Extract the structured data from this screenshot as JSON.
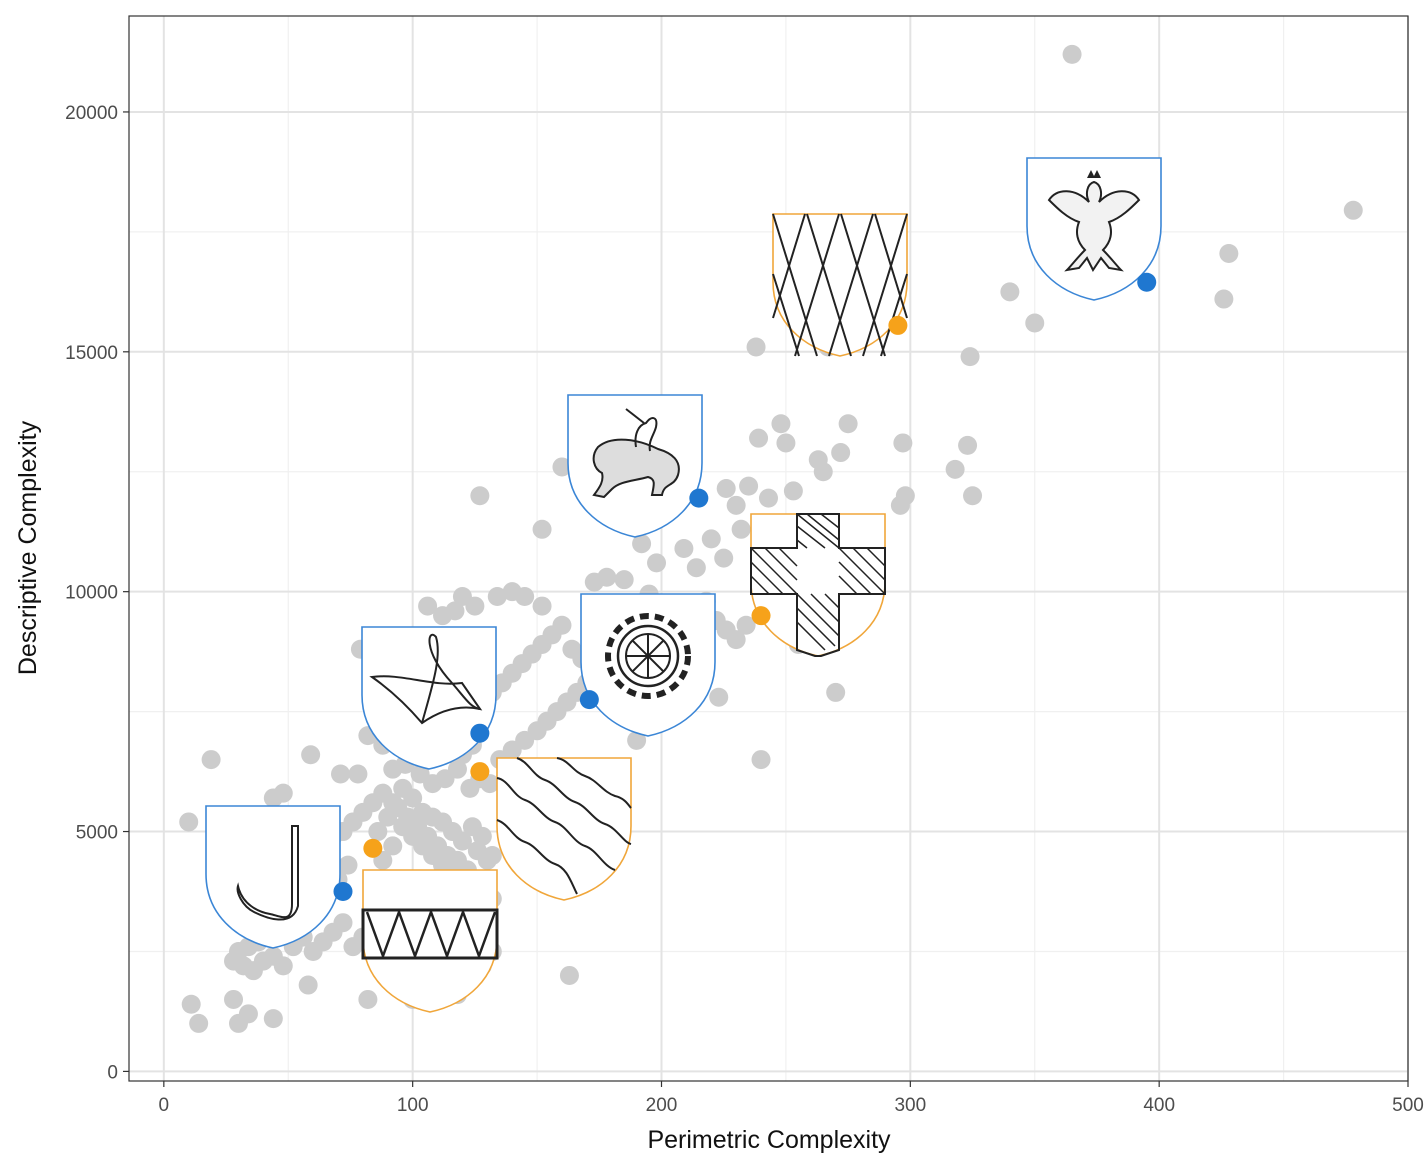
{
  "chart_data": {
    "type": "scatter",
    "xlabel": "Perimetric Complexity",
    "ylabel": "Descriptive Complexity",
    "xlim": [
      -14,
      500
    ],
    "ylim": [
      -200,
      22000
    ],
    "x_ticks": [
      "0",
      "100",
      "200",
      "300",
      "400",
      "500"
    ],
    "y_ticks": [
      "0",
      "5000",
      "10000",
      "15000",
      "20000"
    ],
    "grid": true,
    "background_points_color": "#cccccc",
    "background_points": [
      [
        365,
        21200
      ],
      [
        478,
        17950
      ],
      [
        428,
        17050
      ],
      [
        426,
        16100
      ],
      [
        340,
        16250
      ],
      [
        350,
        15600
      ],
      [
        324,
        14900
      ],
      [
        238,
        15100
      ],
      [
        267,
        15100
      ],
      [
        275,
        13500
      ],
      [
        297,
        13100
      ],
      [
        323,
        13050
      ],
      [
        318,
        12550
      ],
      [
        325,
        12000
      ],
      [
        298,
        12000
      ],
      [
        296,
        11800
      ],
      [
        248,
        13500
      ],
      [
        239,
        13200
      ],
      [
        250,
        13100
      ],
      [
        263,
        12750
      ],
      [
        272,
        12900
      ],
      [
        265,
        12500
      ],
      [
        253,
        12100
      ],
      [
        243,
        11950
      ],
      [
        235,
        12200
      ],
      [
        230,
        11800
      ],
      [
        226,
        12150
      ],
      [
        232,
        11300
      ],
      [
        220,
        11100
      ],
      [
        225,
        10700
      ],
      [
        214,
        10500
      ],
      [
        209,
        10900
      ],
      [
        198,
        10600
      ],
      [
        192,
        11000
      ],
      [
        195,
        9950
      ],
      [
        185,
        10250
      ],
      [
        178,
        10300
      ],
      [
        173,
        10200
      ],
      [
        160,
        12600
      ],
      [
        127,
        12000
      ],
      [
        152,
        11300
      ],
      [
        125,
        9700
      ],
      [
        134,
        9900
      ],
      [
        140,
        10000
      ],
      [
        145,
        9900
      ],
      [
        152,
        9700
      ],
      [
        120,
        9900
      ],
      [
        117,
        9600
      ],
      [
        112,
        9500
      ],
      [
        106,
        9700
      ],
      [
        110,
        8900
      ],
      [
        104,
        8600
      ],
      [
        79,
        8800
      ],
      [
        90,
        9000
      ],
      [
        255,
        8900
      ],
      [
        270,
        7900
      ],
      [
        240,
        6500
      ],
      [
        223,
        7800
      ],
      [
        201,
        7800
      ],
      [
        190,
        6900
      ],
      [
        163,
        2000
      ],
      [
        10,
        5200
      ],
      [
        19,
        6500
      ],
      [
        59,
        6600
      ],
      [
        71,
        6200
      ],
      [
        78,
        6200
      ],
      [
        82,
        7000
      ],
      [
        88,
        6800
      ],
      [
        92,
        6300
      ],
      [
        97,
        6400
      ],
      [
        103,
        6200
      ],
      [
        108,
        6000
      ],
      [
        113,
        6100
      ],
      [
        118,
        6300
      ],
      [
        123,
        5900
      ],
      [
        127,
        6100
      ],
      [
        131,
        6000
      ],
      [
        135,
        6500
      ],
      [
        140,
        6700
      ],
      [
        145,
        6900
      ],
      [
        150,
        7100
      ],
      [
        154,
        7300
      ],
      [
        158,
        7500
      ],
      [
        162,
        7700
      ],
      [
        166,
        7900
      ],
      [
        170,
        8100
      ],
      [
        174,
        8300
      ],
      [
        178,
        8500
      ],
      [
        182,
        8700
      ],
      [
        186,
        8900
      ],
      [
        190,
        9100
      ],
      [
        194,
        9300
      ],
      [
        198,
        9500
      ],
      [
        202,
        9700
      ],
      [
        206,
        9400
      ],
      [
        210,
        9200
      ],
      [
        214,
        9600
      ],
      [
        218,
        9800
      ],
      [
        222,
        9400
      ],
      [
        226,
        9200
      ],
      [
        230,
        9000
      ],
      [
        234,
        9300
      ],
      [
        116,
        7600
      ],
      [
        120,
        7800
      ],
      [
        124,
        7500
      ],
      [
        128,
        7700
      ],
      [
        132,
        7900
      ],
      [
        136,
        8100
      ],
      [
        140,
        8300
      ],
      [
        144,
        8500
      ],
      [
        148,
        8700
      ],
      [
        152,
        8900
      ],
      [
        156,
        9100
      ],
      [
        160,
        9300
      ],
      [
        164,
        8800
      ],
      [
        168,
        8600
      ],
      [
        172,
        8400
      ],
      [
        176,
        8200
      ],
      [
        96,
        7100
      ],
      [
        100,
        7300
      ],
      [
        104,
        7200
      ],
      [
        108,
        7400
      ],
      [
        112,
        7000
      ],
      [
        116,
        6800
      ],
      [
        120,
        6600
      ],
      [
        124,
        6800
      ],
      [
        88,
        5800
      ],
      [
        92,
        5600
      ],
      [
        96,
        5900
      ],
      [
        100,
        5700
      ],
      [
        104,
        5400
      ],
      [
        108,
        5300
      ],
      [
        112,
        5200
      ],
      [
        116,
        5000
      ],
      [
        120,
        4800
      ],
      [
        124,
        5100
      ],
      [
        128,
        4900
      ],
      [
        132,
        4500
      ],
      [
        84,
        5600
      ],
      [
        80,
        5400
      ],
      [
        76,
        5200
      ],
      [
        72,
        5000
      ],
      [
        68,
        4900
      ],
      [
        64,
        5100
      ],
      [
        60,
        4800
      ],
      [
        56,
        4600
      ],
      [
        52,
        5300
      ],
      [
        48,
        5800
      ],
      [
        44,
        5700
      ],
      [
        40,
        5300
      ],
      [
        74,
        4300
      ],
      [
        70,
        4000
      ],
      [
        66,
        3800
      ],
      [
        62,
        3600
      ],
      [
        58,
        3400
      ],
      [
        54,
        3200
      ],
      [
        50,
        3000
      ],
      [
        46,
        2900
      ],
      [
        42,
        2800
      ],
      [
        38,
        2700
      ],
      [
        34,
        2600
      ],
      [
        30,
        2500
      ],
      [
        28,
        2300
      ],
      [
        32,
        2200
      ],
      [
        36,
        2100
      ],
      [
        40,
        2300
      ],
      [
        44,
        2400
      ],
      [
        48,
        2200
      ],
      [
        52,
        2600
      ],
      [
        56,
        2800
      ],
      [
        60,
        2500
      ],
      [
        64,
        2700
      ],
      [
        68,
        2900
      ],
      [
        72,
        3100
      ],
      [
        76,
        2600
      ],
      [
        80,
        2800
      ],
      [
        84,
        3000
      ],
      [
        88,
        3200
      ],
      [
        92,
        2400
      ],
      [
        96,
        2200
      ],
      [
        100,
        2000
      ],
      [
        104,
        1800
      ],
      [
        108,
        1900
      ],
      [
        112,
        2100
      ],
      [
        116,
        2300
      ],
      [
        120,
        2500
      ],
      [
        124,
        2700
      ],
      [
        128,
        2200
      ],
      [
        28,
        1500
      ],
      [
        30,
        1000
      ],
      [
        34,
        1200
      ],
      [
        14,
        1000
      ],
      [
        11,
        1400
      ],
      [
        44,
        1100
      ],
      [
        58,
        1800
      ],
      [
        82,
        1500
      ],
      [
        100,
        1500
      ],
      [
        118,
        1600
      ],
      [
        132,
        2500
      ],
      [
        128,
        3200
      ],
      [
        132,
        3600
      ],
      [
        124,
        3400
      ],
      [
        120,
        3800
      ],
      [
        116,
        4100
      ],
      [
        112,
        4300
      ],
      [
        108,
        4500
      ],
      [
        104,
        4700
      ],
      [
        100,
        4900
      ],
      [
        96,
        5100
      ],
      [
        92,
        4700
      ],
      [
        88,
        4400
      ],
      [
        86,
        5000
      ],
      [
        90,
        5300
      ],
      [
        94,
        5500
      ],
      [
        98,
        5300
      ],
      [
        102,
        5100
      ],
      [
        106,
        4900
      ],
      [
        110,
        4700
      ],
      [
        114,
        4500
      ],
      [
        118,
        4400
      ],
      [
        122,
        4200
      ],
      [
        126,
        4600
      ],
      [
        130,
        4400
      ]
    ],
    "highlight_series": [
      {
        "color": "#1f77d0",
        "points": [
          [
            72,
            3750
          ],
          [
            127,
            7050
          ],
          [
            171,
            7750
          ],
          [
            215,
            11950
          ],
          [
            395,
            16450
          ]
        ]
      },
      {
        "color": "#f6a21a",
        "points": [
          [
            84,
            4650
          ],
          [
            127,
            6250
          ],
          [
            240,
            9500
          ],
          [
            295,
            15550
          ]
        ]
      }
    ],
    "shield_border_colors": {
      "blue": "#3b86d6",
      "orange": "#f0a63a"
    }
  }
}
